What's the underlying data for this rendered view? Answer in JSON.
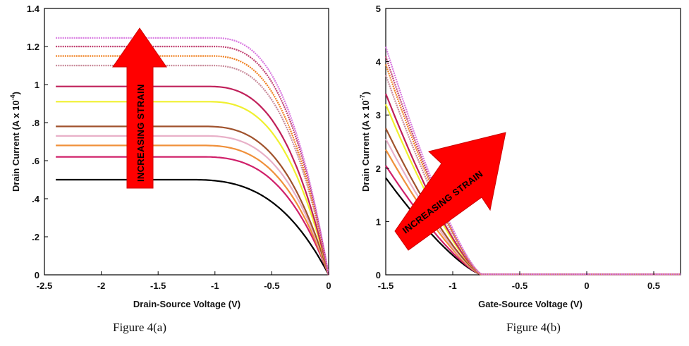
{
  "captions": {
    "a": "Figure 4(a)",
    "b": "Figure 4(b)"
  },
  "chart_data": [
    {
      "type": "line",
      "xlabel": "Drain-Source Voltage (V)",
      "ylabel": "Drain Current (A x 10",
      "ylabel_exp": "-4",
      "ylabel_close": ")",
      "xlim": [
        -2.5,
        0
      ],
      "ylim": [
        0,
        1.4
      ],
      "x_ticks": [
        -2.5,
        -2,
        -1.5,
        -1,
        -0.5,
        0
      ],
      "x_tick_labels": [
        "-2.5",
        "-2",
        "-1.5",
        "-1",
        "-0.5",
        "0"
      ],
      "y_ticks": [
        0,
        0.2,
        0.4,
        0.6,
        0.8,
        1,
        1.2,
        1.4
      ],
      "y_tick_labels": [
        "0",
        ".2",
        ".4",
        ".6",
        ".8",
        "1",
        "1.2",
        "1.4"
      ],
      "grid": false,
      "annotation": "INCREASING STRAIN",
      "x_start": -2.4,
      "series": [
        {
          "color": "#000000",
          "saturation": 0.5,
          "knee": -1.2
        },
        {
          "color": "#d0206a",
          "saturation": 0.62,
          "knee": -1.1
        },
        {
          "color": "#f0903a",
          "saturation": 0.68,
          "knee": -1.1
        },
        {
          "color": "#e8b0c8",
          "saturation": 0.73,
          "knee": -1.08
        },
        {
          "color": "#a0522d",
          "saturation": 0.78,
          "knee": -1.08
        },
        {
          "color": "#f0f030",
          "saturation": 0.91,
          "knee": -1.05
        },
        {
          "color": "#c0205a",
          "saturation": 0.99,
          "knee": -1.05
        },
        {
          "color": "#c88a9a",
          "saturation": 1.1,
          "knee": -1.02
        },
        {
          "color": "#f08020",
          "saturation": 1.15,
          "knee": -1.02
        },
        {
          "color": "#c04070",
          "saturation": 1.2,
          "knee": -1.0
        },
        {
          "color": "#d878e0",
          "saturation": 1.245,
          "knee": -1.0
        }
      ]
    },
    {
      "type": "line",
      "xlabel": "Gate-Source Voltage (V)",
      "ylabel": "Drain Current (A x 10",
      "ylabel_exp": "-7",
      "ylabel_close": ")",
      "xlim": [
        -1.5,
        0.7
      ],
      "ylim": [
        0,
        5
      ],
      "x_ticks": [
        -1.5,
        -1,
        -0.5,
        0,
        0.5
      ],
      "x_tick_labels": [
        "-1.5",
        "-1",
        "-0.5",
        "0",
        "0.5"
      ],
      "y_ticks": [
        0,
        1,
        2,
        3,
        4,
        5
      ],
      "y_tick_labels": [
        "0",
        "1",
        "2",
        "3",
        "4",
        "5"
      ],
      "grid": false,
      "annotation": "INCREASING STRAIN",
      "threshold": -0.78,
      "series": [
        {
          "color": "#000000",
          "y_at_start": 1.82
        },
        {
          "color": "#d0206a",
          "y_at_start": 2.05
        },
        {
          "color": "#f0903a",
          "y_at_start": 2.35
        },
        {
          "color": "#e8b0c8",
          "y_at_start": 2.55
        },
        {
          "color": "#a0522d",
          "y_at_start": 2.75
        },
        {
          "color": "#f0f030",
          "y_at_start": 3.2
        },
        {
          "color": "#c0205a",
          "y_at_start": 3.4
        },
        {
          "color": "#c88a9a",
          "y_at_start": 3.75
        },
        {
          "color": "#f08020",
          "y_at_start": 3.95
        },
        {
          "color": "#c04070",
          "y_at_start": 4.1
        },
        {
          "color": "#d878e0",
          "y_at_start": 4.28
        }
      ]
    }
  ]
}
